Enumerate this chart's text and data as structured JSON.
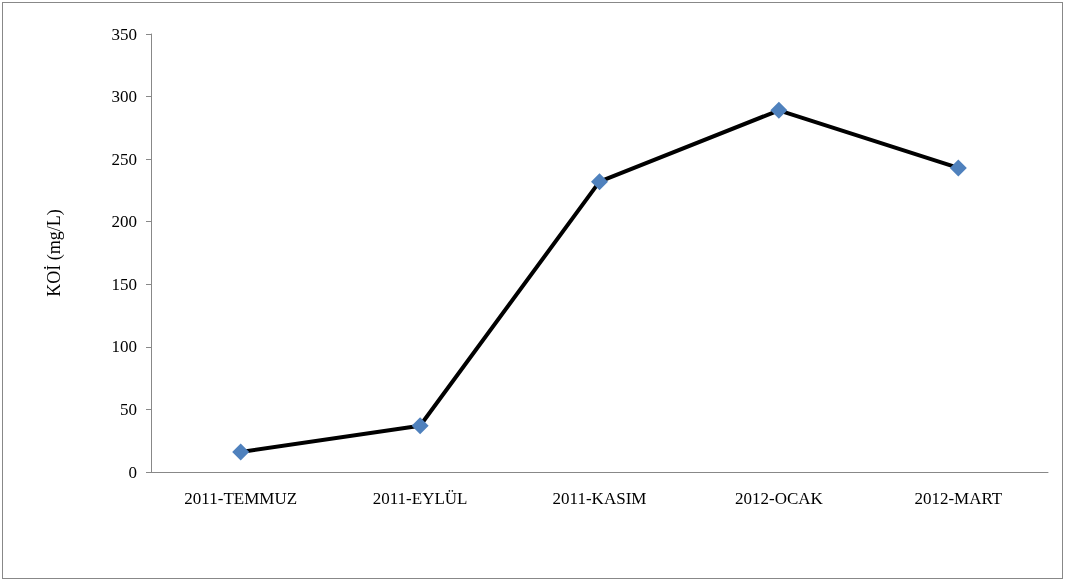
{
  "chart_data": {
    "type": "line",
    "ylabel": "KOİ (mg/L)",
    "categories": [
      "2011-TEMMUZ",
      "2011-EYLÜL",
      "2011-KASIM",
      "2012-OCAK",
      "2012-MART"
    ],
    "values": [
      16,
      37,
      232,
      289,
      243
    ],
    "color": "#000000",
    "colors": [
      "#4f81bd",
      "#4f81bd",
      "#4f81bd",
      "#4f81bd",
      "#4f81bd"
    ],
    "marker": "diamond",
    "line_style": "solid",
    "ylim": [
      0,
      350
    ],
    "yticks": [
      0,
      50,
      100,
      150,
      200,
      250,
      300,
      350
    ],
    "grid": false
  }
}
